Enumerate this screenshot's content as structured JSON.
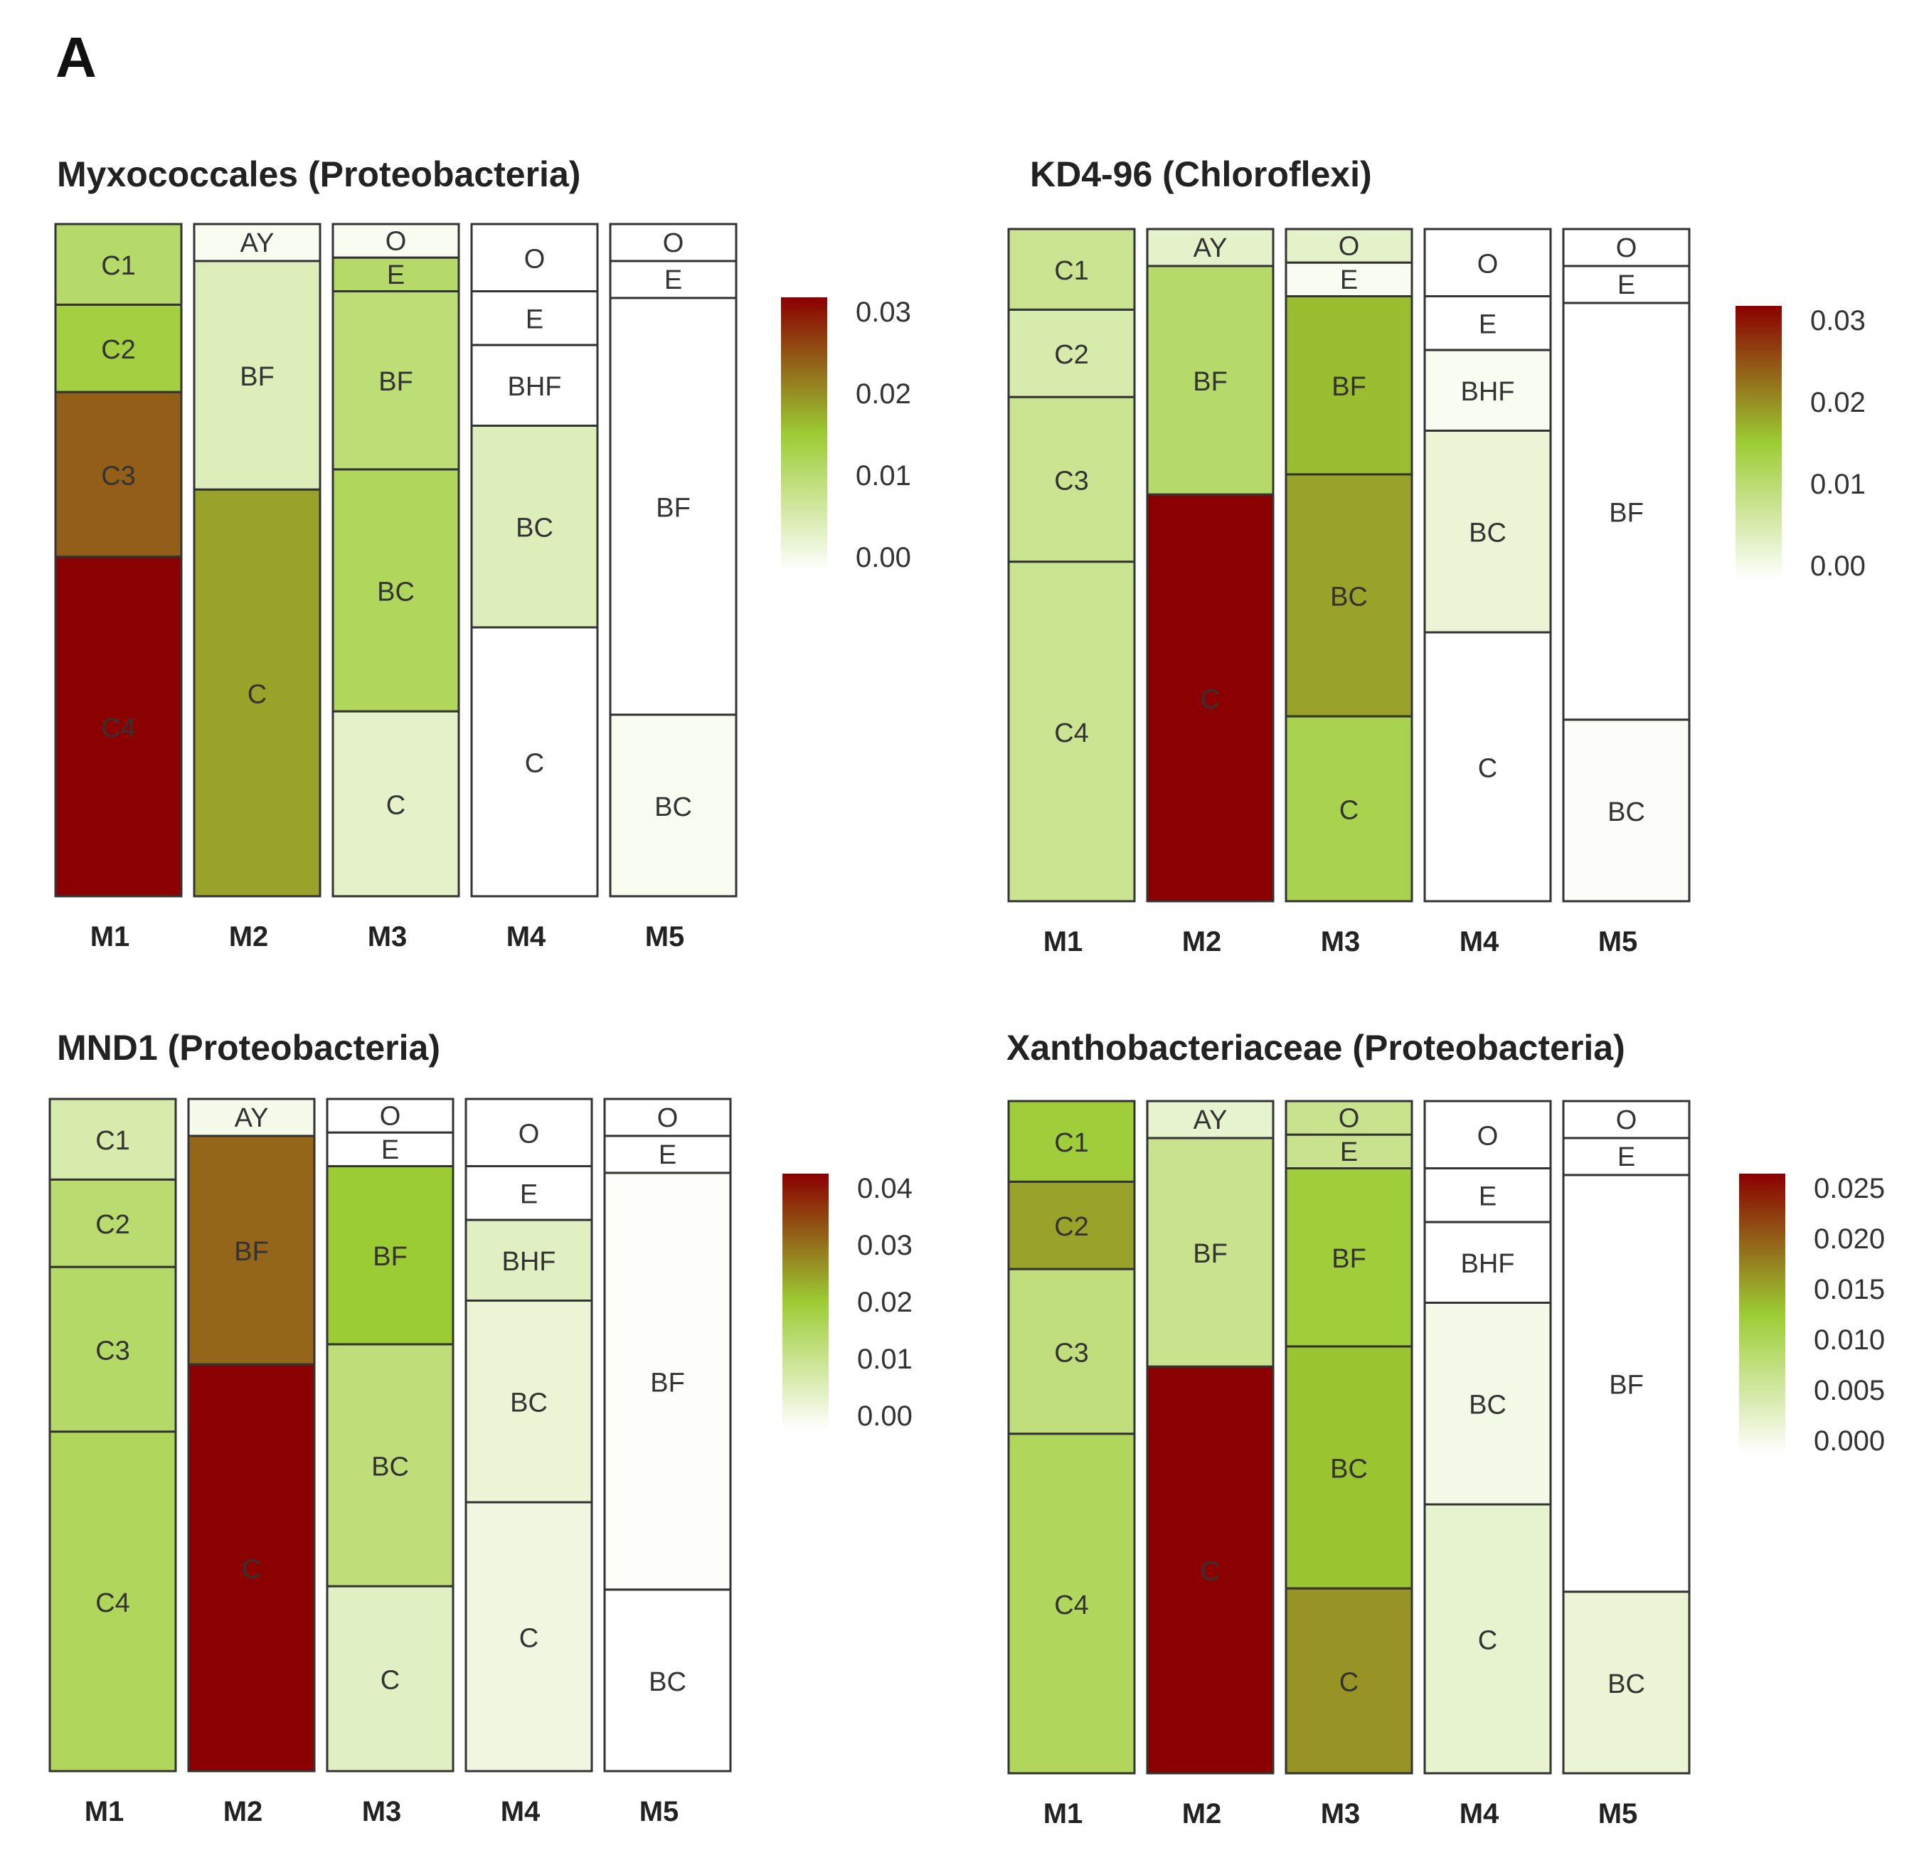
{
  "panel_letter": "A",
  "colors": {
    "low": "#ffffff",
    "mid": "#9ccc33",
    "high": "#8b0000",
    "border": "#333333"
  },
  "chart_data": [
    {
      "type": "heatmap",
      "title": "Myxococcales (Proteobacteria)",
      "columns": [
        {
          "label": "M1",
          "segments": [
            {
              "label": "C1",
              "frac": 0.12,
              "value": 0.011
            },
            {
              "label": "C2",
              "frac": 0.13,
              "value": 0.014
            },
            {
              "label": "C3",
              "frac": 0.245,
              "value": 0.023
            },
            {
              "label": "C4",
              "frac": 0.505,
              "value": 0.031
            }
          ]
        },
        {
          "label": "M2",
          "segments": [
            {
              "label": "AY",
              "frac": 0.055,
              "value": 0.001
            },
            {
              "label": "BF",
              "frac": 0.34,
              "value": 0.005
            },
            {
              "label": "C",
              "frac": 0.605,
              "value": 0.018
            }
          ]
        },
        {
          "label": "M3",
          "segments": [
            {
              "label": "O",
              "frac": 0.05,
              "value": 0.001
            },
            {
              "label": "E",
              "frac": 0.05,
              "value": 0.011
            },
            {
              "label": "BF",
              "frac": 0.265,
              "value": 0.01
            },
            {
              "label": "BC",
              "frac": 0.36,
              "value": 0.012
            },
            {
              "label": "C",
              "frac": 0.275,
              "value": 0.004
            }
          ]
        },
        {
          "label": "M4",
          "segments": [
            {
              "label": "O",
              "frac": 0.1,
              "value": 0.0
            },
            {
              "label": "E",
              "frac": 0.08,
              "value": 0.0
            },
            {
              "label": "BHF",
              "frac": 0.12,
              "value": 0.0
            },
            {
              "label": "BC",
              "frac": 0.3,
              "value": 0.005
            },
            {
              "label": "C",
              "frac": 0.4,
              "value": 0.0
            }
          ]
        },
        {
          "label": "M5",
          "segments": [
            {
              "label": "O",
              "frac": 0.055,
              "value": 0.0
            },
            {
              "label": "E",
              "frac": 0.055,
              "value": 0.0
            },
            {
              "label": "BF",
              "frac": 0.62,
              "value": 0.0
            },
            {
              "label": "BC",
              "frac": 0.27,
              "value": 0.001
            }
          ]
        }
      ],
      "colorbar": {
        "min": 0,
        "max": 0.03,
        "ticks": [
          "0.03",
          "0.02",
          "0.01",
          "0.00"
        ]
      }
    },
    {
      "type": "heatmap",
      "title": "KD4-96 (Chloroflexi)",
      "columns": [
        {
          "label": "M1",
          "segments": [
            {
              "label": "C1",
              "frac": 0.12,
              "value": 0.008
            },
            {
              "label": "C2",
              "frac": 0.13,
              "value": 0.006
            },
            {
              "label": "C3",
              "frac": 0.245,
              "value": 0.008
            },
            {
              "label": "C4",
              "frac": 0.505,
              "value": 0.008
            }
          ]
        },
        {
          "label": "M2",
          "segments": [
            {
              "label": "AY",
              "frac": 0.055,
              "value": 0.004
            },
            {
              "label": "BF",
              "frac": 0.34,
              "value": 0.011
            },
            {
              "label": "C",
              "frac": 0.605,
              "value": 0.031
            }
          ]
        },
        {
          "label": "M3",
          "segments": [
            {
              "label": "O",
              "frac": 0.05,
              "value": 0.004
            },
            {
              "label": "E",
              "frac": 0.05,
              "value": 0.001
            },
            {
              "label": "BF",
              "frac": 0.265,
              "value": 0.016
            },
            {
              "label": "BC",
              "frac": 0.36,
              "value": 0.018
            },
            {
              "label": "C",
              "frac": 0.275,
              "value": 0.013
            }
          ]
        },
        {
          "label": "M4",
          "segments": [
            {
              "label": "O",
              "frac": 0.1,
              "value": 0.0
            },
            {
              "label": "E",
              "frac": 0.08,
              "value": 0.0
            },
            {
              "label": "BHF",
              "frac": 0.12,
              "value": 0.001
            },
            {
              "label": "BC",
              "frac": 0.3,
              "value": 0.003
            },
            {
              "label": "C",
              "frac": 0.4,
              "value": 0.0
            }
          ]
        },
        {
          "label": "M5",
          "segments": [
            {
              "label": "O",
              "frac": 0.055,
              "value": 0.0
            },
            {
              "label": "E",
              "frac": 0.055,
              "value": 0.0
            },
            {
              "label": "BF",
              "frac": 0.62,
              "value": 0.0
            },
            {
              "label": "BC",
              "frac": 0.27,
              "value": 0.0005
            }
          ]
        }
      ],
      "colorbar": {
        "min": 0,
        "max": 0.03,
        "ticks": [
          "0.03",
          "0.02",
          "0.01",
          "0.00"
        ]
      }
    },
    {
      "type": "heatmap",
      "title": "MND1 (Proteobacteria)",
      "columns": [
        {
          "label": "M1",
          "segments": [
            {
              "label": "C1",
              "frac": 0.12,
              "value": 0.008
            },
            {
              "label": "C2",
              "frac": 0.13,
              "value": 0.014
            },
            {
              "label": "C3",
              "frac": 0.245,
              "value": 0.015
            },
            {
              "label": "C4",
              "frac": 0.505,
              "value": 0.016
            }
          ]
        },
        {
          "label": "M2",
          "segments": [
            {
              "label": "AY",
              "frac": 0.055,
              "value": 0.002
            },
            {
              "label": "BF",
              "frac": 0.34,
              "value": 0.03
            },
            {
              "label": "C",
              "frac": 0.605,
              "value": 0.042
            }
          ]
        },
        {
          "label": "M3",
          "segments": [
            {
              "label": "O",
              "frac": 0.05,
              "value": 0.0
            },
            {
              "label": "E",
              "frac": 0.05,
              "value": 0.0
            },
            {
              "label": "BF",
              "frac": 0.265,
              "value": 0.02
            },
            {
              "label": "BC",
              "frac": 0.36,
              "value": 0.013
            },
            {
              "label": "C",
              "frac": 0.275,
              "value": 0.006
            }
          ]
        },
        {
          "label": "M4",
          "segments": [
            {
              "label": "O",
              "frac": 0.1,
              "value": 0.0
            },
            {
              "label": "E",
              "frac": 0.08,
              "value": 0.0
            },
            {
              "label": "BHF",
              "frac": 0.12,
              "value": 0.006
            },
            {
              "label": "BC",
              "frac": 0.3,
              "value": 0.004
            },
            {
              "label": "C",
              "frac": 0.4,
              "value": 0.003
            }
          ]
        },
        {
          "label": "M5",
          "segments": [
            {
              "label": "O",
              "frac": 0.055,
              "value": 0.0
            },
            {
              "label": "E",
              "frac": 0.055,
              "value": 0.0
            },
            {
              "label": "BF",
              "frac": 0.62,
              "value": 0.0005
            },
            {
              "label": "BC",
              "frac": 0.27,
              "value": 0.0
            }
          ]
        }
      ],
      "colorbar": {
        "min": 0,
        "max": 0.04,
        "ticks": [
          "0.04",
          "0.03",
          "0.02",
          "0.01",
          "0.00"
        ]
      }
    },
    {
      "type": "heatmap",
      "title": "Xanthobacteriaceae (Proteobacteria)",
      "columns": [
        {
          "label": "M1",
          "segments": [
            {
              "label": "C1",
              "frac": 0.12,
              "value": 0.012
            },
            {
              "label": "C2",
              "frac": 0.13,
              "value": 0.015
            },
            {
              "label": "C3",
              "frac": 0.245,
              "value": 0.008
            },
            {
              "label": "C4",
              "frac": 0.505,
              "value": 0.01
            }
          ]
        },
        {
          "label": "M2",
          "segments": [
            {
              "label": "AY",
              "frac": 0.055,
              "value": 0.003
            },
            {
              "label": "BF",
              "frac": 0.34,
              "value": 0.007
            },
            {
              "label": "C",
              "frac": 0.605,
              "value": 0.026
            }
          ]
        },
        {
          "label": "M3",
          "segments": [
            {
              "label": "O",
              "frac": 0.05,
              "value": 0.007
            },
            {
              "label": "E",
              "frac": 0.05,
              "value": 0.007
            },
            {
              "label": "BF",
              "frac": 0.265,
              "value": 0.012
            },
            {
              "label": "BC",
              "frac": 0.36,
              "value": 0.013
            },
            {
              "label": "C",
              "frac": 0.275,
              "value": 0.016
            }
          ]
        },
        {
          "label": "M4",
          "segments": [
            {
              "label": "O",
              "frac": 0.1,
              "value": 0.0
            },
            {
              "label": "E",
              "frac": 0.08,
              "value": 0.0
            },
            {
              "label": "BHF",
              "frac": 0.12,
              "value": 0.0
            },
            {
              "label": "BC",
              "frac": 0.3,
              "value": 0.0015
            },
            {
              "label": "C",
              "frac": 0.4,
              "value": 0.003
            }
          ]
        },
        {
          "label": "M5",
          "segments": [
            {
              "label": "O",
              "frac": 0.055,
              "value": 0.0
            },
            {
              "label": "E",
              "frac": 0.055,
              "value": 0.0
            },
            {
              "label": "BF",
              "frac": 0.62,
              "value": 0.0
            },
            {
              "label": "BC",
              "frac": 0.27,
              "value": 0.0025
            }
          ]
        }
      ],
      "colorbar": {
        "min": 0,
        "max": 0.025,
        "ticks": [
          "0.025",
          "0.020",
          "0.015",
          "0.010",
          "0.005",
          "0.000"
        ]
      }
    }
  ]
}
